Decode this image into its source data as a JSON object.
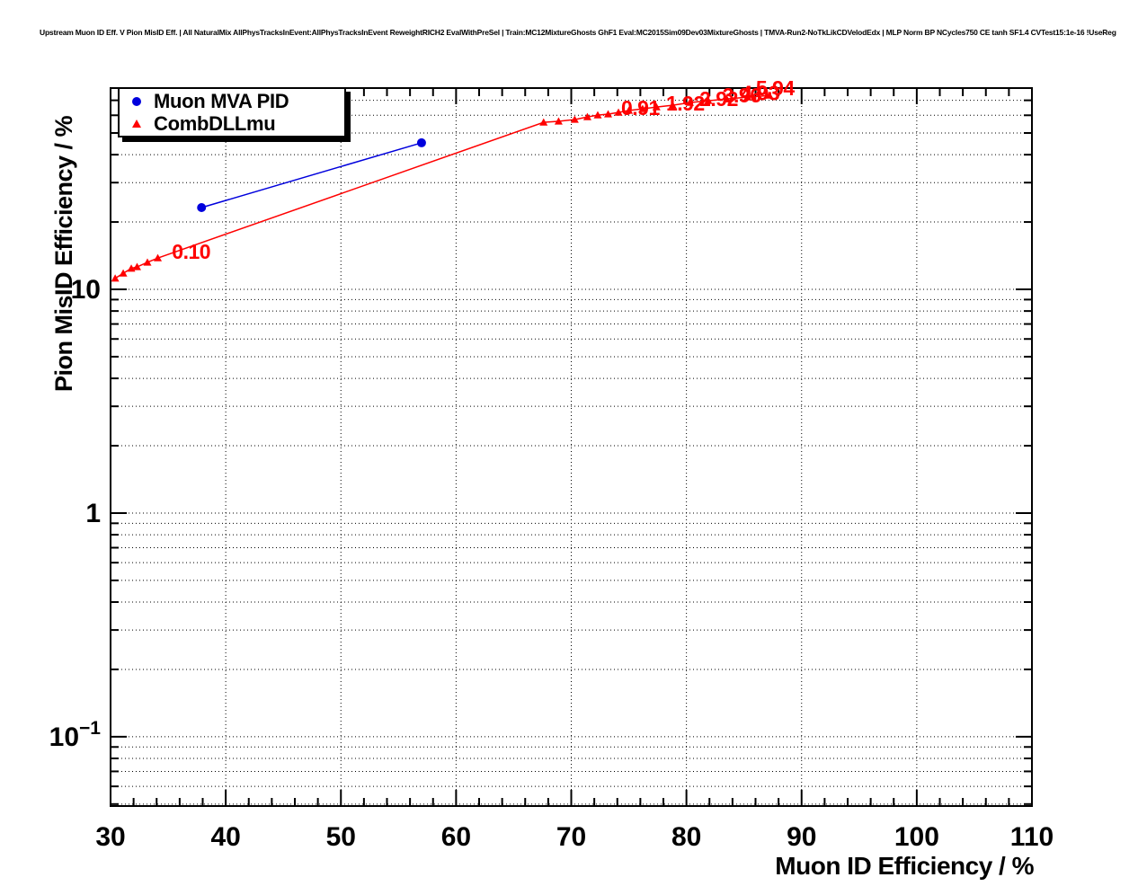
{
  "title": "Upstream Muon ID Eff. V Pion MisID Eff. | All NaturalMix AllPhysTracksInEvent:AllPhysTracksInEvent ReweightRICH2 EvalWithPreSel | Train:MC12MixtureGhosts GhF1 Eval:MC2015Sim09Dev03MixtureGhosts | TMVA-Run2-NoTkLikCDVelodEdx | MLP Norm BP NCycles750 CE tanh SF1.4 CVTest15:1e-16 !UseReg",
  "chart_data": {
    "type": "line",
    "xlabel": "Muon ID Efficiency / %",
    "ylabel": "Pion MisID Efficiency / %",
    "x_axis": {
      "min": 30,
      "max": 110,
      "major_step": 10,
      "minor_step": 2,
      "tick_labels": [
        "30",
        "40",
        "50",
        "60",
        "70",
        "80",
        "90",
        "100",
        "110"
      ]
    },
    "y_axis": {
      "scale": "log",
      "min": 0.049,
      "max": 79.4,
      "major_ticks": [
        {
          "value": 0.1,
          "label": "10^−1"
        },
        {
          "value": 1,
          "label": "1"
        },
        {
          "value": 10,
          "label": "10"
        }
      ]
    },
    "grid": {
      "style": "dotted",
      "color": "#000000",
      "vertical_on": "major",
      "horizontal_on": "log-minor"
    },
    "legend": {
      "position": "top-left",
      "entries": [
        {
          "label": "Muon MVA PID",
          "marker": "circle",
          "color": "#0000dd"
        },
        {
          "label": "CombDLLmu",
          "marker": "triangle",
          "color": "#ff0000"
        }
      ]
    },
    "series": [
      {
        "name": "Muon MVA PID",
        "color": "#0000dd",
        "marker": "circle",
        "marker_size": 5,
        "points": [
          [
            37.9,
            23.2
          ],
          [
            57.0,
            45.2
          ]
        ]
      },
      {
        "name": "CombDLLmu",
        "color": "#ff0000",
        "marker": "triangle",
        "marker_size": 4.5,
        "points": [
          [
            30.4,
            11.2
          ],
          [
            31.1,
            11.8
          ],
          [
            31.8,
            12.4
          ],
          [
            32.3,
            12.6
          ],
          [
            33.2,
            13.2
          ],
          [
            34.1,
            13.8
          ],
          [
            67.6,
            55.8
          ],
          [
            68.9,
            56.4
          ],
          [
            70.3,
            57.4
          ],
          [
            71.4,
            59.0
          ],
          [
            72.3,
            60.1
          ],
          [
            73.2,
            60.7
          ],
          [
            74.1,
            61.8
          ],
          [
            75.0,
            63.0
          ],
          [
            76.2,
            64.1
          ],
          [
            77.4,
            65.3
          ],
          [
            78.8,
            66.5
          ],
          [
            80.3,
            68.4
          ],
          [
            81.9,
            69.7
          ],
          [
            83.5,
            71.0
          ],
          [
            85.3,
            72.3
          ],
          [
            87.2,
            73.6
          ]
        ]
      }
    ],
    "annotations": [
      {
        "text": "0.10",
        "x": 37.0,
        "y": 14.5
      },
      {
        "text": "0.91",
        "x": 76.0,
        "y": 63.5
      },
      {
        "text": "1.92",
        "x": 79.9,
        "y": 66.5
      },
      {
        "text": "2.92",
        "x": 82.8,
        "y": 69.7
      },
      {
        "text": "3.96",
        "x": 84.8,
        "y": 72.3
      },
      {
        "text": "4.93",
        "x": 86.4,
        "y": 74.2
      },
      {
        "text": "5.94",
        "x": 87.7,
        "y": 78.0
      }
    ],
    "colors": {
      "annotation": "#ff0000",
      "axis": "#000000",
      "background": "#ffffff"
    }
  }
}
